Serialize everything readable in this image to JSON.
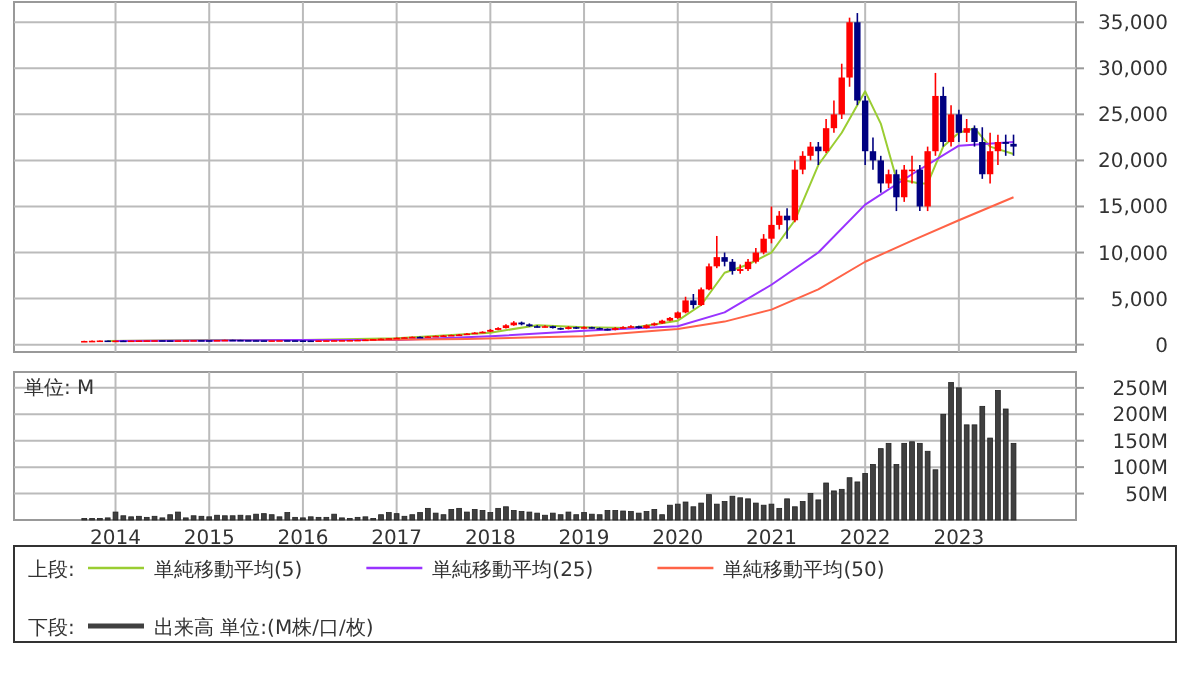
{
  "chart_data": [
    {
      "type": "candlestick",
      "legend_title": "上段:",
      "legend": "bottom",
      "grid": true,
      "tick_labels": "y",
      "x": [
        "2013-09",
        "2013-10",
        "2013-11",
        "2013-12",
        "2014-01",
        "2014-02",
        "2014-03",
        "2014-04",
        "2014-05",
        "2014-06",
        "2014-07",
        "2014-08",
        "2014-09",
        "2014-10",
        "2014-11",
        "2014-12",
        "2015-01",
        "2015-02",
        "2015-03",
        "2015-04",
        "2015-05",
        "2015-06",
        "2015-07",
        "2015-08",
        "2015-09",
        "2015-10",
        "2015-11",
        "2015-12",
        "2016-01",
        "2016-02",
        "2016-03",
        "2016-04",
        "2016-05",
        "2016-06",
        "2016-07",
        "2016-08",
        "2016-09",
        "2016-10",
        "2016-11",
        "2016-12",
        "2017-01",
        "2017-02",
        "2017-03",
        "2017-04",
        "2017-05",
        "2017-06",
        "2017-07",
        "2017-08",
        "2017-09",
        "2017-10",
        "2017-11",
        "2017-12",
        "2018-01",
        "2018-02",
        "2018-03",
        "2018-04",
        "2018-05",
        "2018-06",
        "2018-07",
        "2018-08",
        "2018-09",
        "2018-10",
        "2018-11",
        "2018-12",
        "2019-01",
        "2019-02",
        "2019-03",
        "2019-04",
        "2019-05",
        "2019-06",
        "2019-07",
        "2019-08",
        "2019-09",
        "2019-10",
        "2019-11",
        "2019-12",
        "2020-01",
        "2020-02",
        "2020-03",
        "2020-04",
        "2020-05",
        "2020-06",
        "2020-07",
        "2020-08",
        "2020-09",
        "2020-10",
        "2020-11",
        "2020-12",
        "2021-01",
        "2021-02",
        "2021-03",
        "2021-04",
        "2021-05",
        "2021-06",
        "2021-07",
        "2021-08",
        "2021-09",
        "2021-10",
        "2021-11",
        "2021-12",
        "2022-01",
        "2022-02",
        "2022-03",
        "2022-04",
        "2022-05",
        "2022-06",
        "2022-07",
        "2022-08",
        "2022-09",
        "2022-10",
        "2022-11",
        "2022-12",
        "2023-01",
        "2023-02",
        "2023-03",
        "2023-04",
        "2023-05",
        "2023-06",
        "2023-07",
        "2023-08"
      ],
      "ohlc": [
        [
          380,
          420,
          370,
          400
        ],
        [
          400,
          440,
          390,
          420
        ],
        [
          420,
          470,
          410,
          450
        ],
        [
          450,
          460,
          420,
          430
        ],
        [
          430,
          450,
          415,
          440
        ],
        [
          440,
          455,
          410,
          420
        ],
        [
          420,
          460,
          410,
          450
        ],
        [
          450,
          470,
          440,
          460
        ],
        [
          460,
          480,
          450,
          470
        ],
        [
          470,
          490,
          460,
          480
        ],
        [
          480,
          490,
          460,
          470
        ],
        [
          470,
          480,
          450,
          460
        ],
        [
          460,
          480,
          450,
          470
        ],
        [
          470,
          490,
          460,
          480
        ],
        [
          480,
          500,
          470,
          490
        ],
        [
          490,
          500,
          470,
          480
        ],
        [
          480,
          490,
          460,
          470
        ],
        [
          470,
          510,
          465,
          500
        ],
        [
          500,
          530,
          490,
          520
        ],
        [
          520,
          530,
          500,
          510
        ],
        [
          510,
          520,
          480,
          490
        ],
        [
          490,
          500,
          470,
          480
        ],
        [
          480,
          490,
          460,
          470
        ],
        [
          470,
          480,
          440,
          460
        ],
        [
          460,
          480,
          450,
          470
        ],
        [
          470,
          490,
          460,
          480
        ],
        [
          480,
          490,
          460,
          470
        ],
        [
          470,
          480,
          450,
          460
        ],
        [
          460,
          470,
          430,
          450
        ],
        [
          450,
          460,
          420,
          440
        ],
        [
          440,
          470,
          430,
          460
        ],
        [
          460,
          480,
          450,
          470
        ],
        [
          470,
          490,
          460,
          480
        ],
        [
          480,
          500,
          470,
          490
        ],
        [
          490,
          510,
          480,
          500
        ],
        [
          500,
          530,
          490,
          520
        ],
        [
          520,
          560,
          510,
          550
        ],
        [
          550,
          610,
          540,
          600
        ],
        [
          600,
          660,
          590,
          650
        ],
        [
          650,
          720,
          640,
          700
        ],
        [
          700,
          780,
          680,
          750
        ],
        [
          750,
          830,
          730,
          800
        ],
        [
          800,
          880,
          780,
          850
        ],
        [
          850,
          870,
          790,
          820
        ],
        [
          820,
          930,
          800,
          900
        ],
        [
          900,
          980,
          880,
          950
        ],
        [
          950,
          1050,
          920,
          1000
        ],
        [
          1000,
          1080,
          960,
          1050
        ],
        [
          1050,
          1150,
          1020,
          1100
        ],
        [
          1100,
          1250,
          1080,
          1200
        ],
        [
          1200,
          1350,
          1150,
          1300
        ],
        [
          1300,
          1450,
          1250,
          1400
        ],
        [
          1400,
          1700,
          1350,
          1600
        ],
        [
          1600,
          1900,
          1550,
          1800
        ],
        [
          1800,
          2200,
          1750,
          2100
        ],
        [
          2100,
          2550,
          2050,
          2400
        ],
        [
          2400,
          2500,
          2100,
          2200
        ],
        [
          2200,
          2300,
          1950,
          2000
        ],
        [
          2000,
          2100,
          1850,
          1900
        ],
        [
          1900,
          2100,
          1850,
          2000
        ],
        [
          2000,
          2050,
          1750,
          1800
        ],
        [
          1800,
          1850,
          1600,
          1700
        ],
        [
          1700,
          2000,
          1650,
          1900
        ],
        [
          1900,
          1950,
          1700,
          1800
        ],
        [
          1800,
          2000,
          1750,
          1900
        ],
        [
          1900,
          1950,
          1750,
          1800
        ],
        [
          1800,
          1850,
          1650,
          1700
        ],
        [
          1700,
          1750,
          1550,
          1600
        ],
        [
          1600,
          1900,
          1550,
          1800
        ],
        [
          1800,
          2000,
          1750,
          1900
        ],
        [
          1900,
          2100,
          1850,
          2000
        ],
        [
          2000,
          2050,
          1750,
          1800
        ],
        [
          1800,
          2200,
          1750,
          2100
        ],
        [
          2100,
          2400,
          2050,
          2300
        ],
        [
          2300,
          2700,
          2250,
          2600
        ],
        [
          2600,
          3000,
          2550,
          2900
        ],
        [
          2900,
          3600,
          2800,
          3500
        ],
        [
          3500,
          5200,
          3400,
          4800
        ],
        [
          4800,
          5500,
          3900,
          4300
        ],
        [
          4300,
          6200,
          4200,
          6000
        ],
        [
          6000,
          8800,
          5900,
          8500
        ],
        [
          8500,
          11800,
          8300,
          9500
        ],
        [
          9500,
          10000,
          8500,
          9000
        ],
        [
          9000,
          9300,
          7600,
          8000
        ],
        [
          8000,
          8700,
          7700,
          8200
        ],
        [
          8200,
          9300,
          8000,
          9000
        ],
        [
          9000,
          10500,
          8800,
          10000
        ],
        [
          10000,
          12000,
          9800,
          11500
        ],
        [
          11500,
          15000,
          11000,
          13000
        ],
        [
          13000,
          14500,
          12500,
          14000
        ],
        [
          14000,
          14800,
          11500,
          13500
        ],
        [
          13500,
          20000,
          13300,
          19000
        ],
        [
          19000,
          21000,
          18500,
          20500
        ],
        [
          20500,
          22000,
          20000,
          21500
        ],
        [
          21500,
          22000,
          19500,
          21000
        ],
        [
          21000,
          24500,
          20800,
          23500
        ],
        [
          23500,
          26500,
          23000,
          25000
        ],
        [
          25000,
          30500,
          24500,
          29000
        ],
        [
          29000,
          35500,
          28000,
          35000
        ],
        [
          35000,
          36000,
          26000,
          26500
        ],
        [
          26500,
          27000,
          19500,
          21000
        ],
        [
          21000,
          22500,
          19000,
          20000
        ],
        [
          20000,
          20500,
          16500,
          17500
        ],
        [
          17500,
          19000,
          17000,
          18500
        ],
        [
          18500,
          19000,
          14500,
          16000
        ],
        [
          16000,
          19500,
          15500,
          19000
        ],
        [
          19000,
          20500,
          17500,
          19000
        ],
        [
          19000,
          19500,
          14500,
          15000
        ],
        [
          15000,
          21500,
          14500,
          21000
        ],
        [
          21000,
          29500,
          20500,
          27000
        ],
        [
          27000,
          28000,
          21500,
          22000
        ],
        [
          22000,
          26000,
          21500,
          25000
        ],
        [
          25000,
          25500,
          22000,
          23000
        ],
        [
          23000,
          24500,
          22000,
          23500
        ],
        [
          23500,
          23800,
          21500,
          22000
        ],
        [
          22000,
          23600,
          18000,
          18500
        ],
        [
          18500,
          23000,
          17500,
          21000
        ],
        [
          21000,
          22800,
          19500,
          22000
        ],
        [
          22000,
          22800,
          20500,
          21800
        ],
        [
          21800,
          22800,
          20500,
          21500
        ]
      ],
      "series": [
        {
          "type": "line",
          "name": "単純移動平均(5)",
          "color": "#9acd32",
          "x": [
            "2013-12",
            "2015-01",
            "2016-01",
            "2017-01",
            "2018-01",
            "2018-07",
            "2019-01",
            "2019-07",
            "2020-01",
            "2020-04",
            "2020-07",
            "2020-10",
            "2021-01",
            "2021-04",
            "2021-07",
            "2021-10",
            "2022-01",
            "2022-03",
            "2022-05",
            "2022-08",
            "2022-09",
            "2022-11",
            "2023-01",
            "2023-03",
            "2023-05",
            "2023-08"
          ],
          "values": [
            400,
            500,
            500,
            700,
            1300,
            2100,
            1900,
            1800,
            2600,
            4300,
            7800,
            8700,
            10000,
            13500,
            19500,
            23000,
            27500,
            24000,
            18000,
            17500,
            17500,
            21500,
            23000,
            23500,
            21500,
            20700
          ]
        },
        {
          "type": "line",
          "name": "単純移動平均(25)",
          "color": "#9933ff",
          "x": [
            "2014-01",
            "2016-01",
            "2017-01",
            "2018-01",
            "2019-01",
            "2020-01",
            "2020-07",
            "2021-01",
            "2021-07",
            "2022-01",
            "2022-07",
            "2023-01",
            "2023-08"
          ],
          "values": [
            400,
            500,
            500,
            900,
            1500,
            2000,
            3500,
            6500,
            10000,
            15200,
            18500,
            21600,
            22000
          ]
        },
        {
          "type": "line",
          "name": "単純移動平均(50)",
          "color": "#ff6347",
          "x": [
            "2016-09",
            "2017-10",
            "2018-07",
            "2019-01",
            "2020-01",
            "2020-07",
            "2021-01",
            "2021-07",
            "2022-01",
            "2022-07",
            "2023-01",
            "2023-08"
          ],
          "values": [
            500,
            600,
            800,
            900,
            1700,
            2500,
            3800,
            6000,
            9000,
            11300,
            13500,
            16000
          ]
        }
      ],
      "xlim": [
        "2012-12",
        "2024-04"
      ],
      "xticks": [
        {
          "value": "2014-01",
          "label": null
        },
        {
          "value": "2015-01",
          "label": null
        },
        {
          "value": "2016-01",
          "label": null
        },
        {
          "value": "2017-01",
          "label": null
        },
        {
          "value": "2018-01",
          "label": null
        },
        {
          "value": "2019-01",
          "label": null
        },
        {
          "value": "2020-01",
          "label": null
        },
        {
          "value": "2021-01",
          "label": null
        },
        {
          "value": "2022-01",
          "label": null
        },
        {
          "value": "2023-01",
          "label": null
        }
      ],
      "ylim": [
        -800,
        37200
      ],
      "yticks": [
        0,
        {
          "value": 5000,
          "label": "5,000"
        },
        {
          "value": 10000,
          "label": "10,000"
        },
        {
          "value": 15000,
          "label": "15,000"
        },
        {
          "value": 20000,
          "label": "20,000"
        },
        {
          "value": 25000,
          "label": "25,000"
        },
        {
          "value": 30000,
          "label": "30,000"
        },
        {
          "value": 35000,
          "label": "35,000"
        }
      ]
    },
    {
      "type": "bar",
      "legend_title": "下段:",
      "legend": "bottom",
      "grid": true,
      "ylabel": "単位: M",
      "x": [
        "2013-09",
        "2013-10",
        "2013-11",
        "2013-12",
        "2014-01",
        "2014-02",
        "2014-03",
        "2014-04",
        "2014-05",
        "2014-06",
        "2014-07",
        "2014-08",
        "2014-09",
        "2014-10",
        "2014-11",
        "2014-12",
        "2015-01",
        "2015-02",
        "2015-03",
        "2015-04",
        "2015-05",
        "2015-06",
        "2015-07",
        "2015-08",
        "2015-09",
        "2015-10",
        "2015-11",
        "2015-12",
        "2016-01",
        "2016-02",
        "2016-03",
        "2016-04",
        "2016-05",
        "2016-06",
        "2016-07",
        "2016-08",
        "2016-09",
        "2016-10",
        "2016-11",
        "2016-12",
        "2017-01",
        "2017-02",
        "2017-03",
        "2017-04",
        "2017-05",
        "2017-06",
        "2017-07",
        "2017-08",
        "2017-09",
        "2017-10",
        "2017-11",
        "2017-12",
        "2018-01",
        "2018-02",
        "2018-03",
        "2018-04",
        "2018-05",
        "2018-06",
        "2018-07",
        "2018-08",
        "2018-09",
        "2018-10",
        "2018-11",
        "2018-12",
        "2019-01",
        "2019-02",
        "2019-03",
        "2019-04",
        "2019-05",
        "2019-06",
        "2019-07",
        "2019-08",
        "2019-09",
        "2019-10",
        "2019-11",
        "2019-12",
        "2020-01",
        "2020-02",
        "2020-03",
        "2020-04",
        "2020-05",
        "2020-06",
        "2020-07",
        "2020-08",
        "2020-09",
        "2020-10",
        "2020-11",
        "2020-12",
        "2021-01",
        "2021-02",
        "2021-03",
        "2021-04",
        "2021-05",
        "2021-06",
        "2021-07",
        "2021-08",
        "2021-09",
        "2021-10",
        "2021-11",
        "2021-12",
        "2022-01",
        "2022-02",
        "2022-03",
        "2022-04",
        "2022-05",
        "2022-06",
        "2022-07",
        "2022-08",
        "2022-09",
        "2022-10",
        "2022-11",
        "2022-12",
        "2023-01",
        "2023-02",
        "2023-03",
        "2023-04",
        "2023-05",
        "2023-06",
        "2023-07",
        "2023-08"
      ],
      "series": [
        {
          "name": "出来高 単位:(M株/口/枚)",
          "color": "#404040",
          "values": [
            3,
            3,
            3,
            4,
            15,
            8,
            6,
            7,
            5,
            7,
            4,
            10,
            15,
            4,
            8,
            7,
            6,
            9,
            8,
            8,
            9,
            8,
            11,
            12,
            10,
            6,
            14,
            5,
            4,
            6,
            5,
            5,
            11,
            4,
            3,
            5,
            6,
            3,
            10,
            14,
            12,
            7,
            10,
            14,
            22,
            13,
            10,
            20,
            22,
            15,
            20,
            18,
            14,
            22,
            25,
            18,
            16,
            15,
            13,
            9,
            13,
            10,
            15,
            10,
            14,
            11,
            10,
            18,
            18,
            17,
            16,
            13,
            16,
            20,
            10,
            28,
            30,
            34,
            25,
            32,
            48,
            30,
            35,
            45,
            42,
            40,
            32,
            28,
            30,
            22,
            40,
            25,
            35,
            50,
            38,
            70,
            55,
            58,
            80,
            72,
            88,
            105,
            135,
            145,
            105,
            145,
            148,
            145,
            130,
            95,
            200,
            260,
            250,
            180,
            180,
            215,
            155,
            245,
            210,
            145
          ]
        }
      ],
      "xlim": [
        "2012-12",
        "2024-04"
      ],
      "xticks": [
        {
          "value": "2014-01",
          "label": "2014"
        },
        {
          "value": "2015-01",
          "label": "2015"
        },
        {
          "value": "2016-01",
          "label": "2016"
        },
        {
          "value": "2017-01",
          "label": "2017"
        },
        {
          "value": "2018-01",
          "label": "2018"
        },
        {
          "value": "2019-01",
          "label": "2019"
        },
        {
          "value": "2020-01",
          "label": "2020"
        },
        {
          "value": "2021-01",
          "label": "2021"
        },
        {
          "value": "2022-01",
          "label": "2022"
        },
        {
          "value": "2023-01",
          "label": "2023"
        }
      ],
      "ylim": [
        0,
        280
      ],
      "yticks": [
        {
          "value": 50,
          "label": "50M"
        },
        {
          "value": 100,
          "label": "100M"
        },
        {
          "value": 150,
          "label": "150M"
        },
        {
          "value": 200,
          "label": "200M"
        },
        {
          "value": 250,
          "label": "250M"
        }
      ]
    }
  ]
}
